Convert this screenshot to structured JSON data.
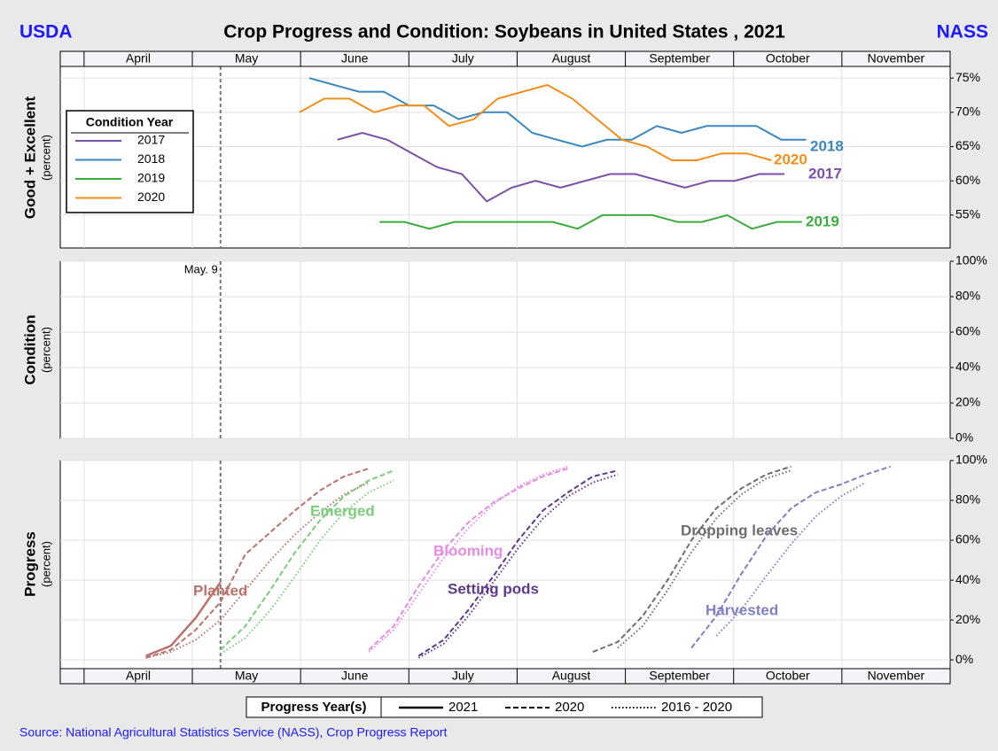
{
  "header": {
    "left": "USDA",
    "title": "Crop Progress and Condition: Soybeans in United States , 2021",
    "right": "NASS"
  },
  "source": "Source: National Agricultural Statistics Service (NASS), Crop Progress Report",
  "chart_data": [
    {
      "type": "line",
      "ylabel": "Good + Excellent",
      "ylabel_sub": "(percent)",
      "xaxis": "top",
      "grid": true,
      "legend": "left",
      "legend_title": "Condition Year",
      "xlim": [
        3.78,
        12.0
      ],
      "xticks": [
        {
          "value": 4,
          "label": "April"
        },
        {
          "value": 5,
          "label": "May"
        },
        {
          "value": 6,
          "label": "June"
        },
        {
          "value": 7,
          "label": "July"
        },
        {
          "value": 8,
          "label": "August"
        },
        {
          "value": 9,
          "label": "September"
        },
        {
          "value": 10,
          "label": "October"
        },
        {
          "value": 11,
          "label": "November"
        }
      ],
      "ylim": [
        50.2,
        76.7
      ],
      "yticks": [
        {
          "value": 55,
          "label": "55%"
        },
        {
          "value": 60,
          "label": "60%"
        },
        {
          "value": 65,
          "label": "65%"
        },
        {
          "value": 70,
          "label": "70%"
        },
        {
          "value": 75,
          "label": "75%"
        }
      ],
      "series": [
        {
          "name": "2017",
          "color": "#7b4fa6",
          "x": [
            6.34,
            6.57,
            6.8,
            7.03,
            7.26,
            7.49,
            7.72,
            7.95,
            8.17,
            8.4,
            8.63,
            8.86,
            9.09,
            9.32,
            9.55,
            9.78,
            10.01,
            10.24,
            10.47
          ],
          "values": [
            66,
            67,
            66,
            64,
            62,
            61,
            57,
            59,
            60,
            59,
            60,
            61,
            61,
            60,
            59,
            60,
            60,
            61,
            61
          ]
        },
        {
          "name": "2018",
          "color": "#3a87bd",
          "x": [
            6.08,
            6.31,
            6.54,
            6.77,
            7.0,
            7.23,
            7.46,
            7.69,
            7.91,
            8.14,
            8.37,
            8.6,
            8.83,
            9.06,
            9.29,
            9.52,
            9.75,
            9.98,
            10.21,
            10.44,
            10.67
          ],
          "values": [
            75,
            74,
            73,
            73,
            71,
            71,
            69,
            70,
            70,
            67,
            66,
            65,
            66,
            66,
            68,
            67,
            68,
            68,
            68,
            66,
            66
          ]
        },
        {
          "name": "2019",
          "color": "#3dab3d",
          "x": [
            6.73,
            6.96,
            7.19,
            7.42,
            7.65,
            7.88,
            8.11,
            8.33,
            8.56,
            8.79,
            9.02,
            9.25,
            9.48,
            9.71,
            9.94,
            10.17,
            10.4,
            10.63
          ],
          "values": [
            54,
            54,
            53,
            54,
            54,
            54,
            54,
            54,
            53,
            55,
            55,
            55,
            54,
            54,
            55,
            53,
            54,
            54
          ]
        },
        {
          "name": "2020",
          "color": "#f28e1c",
          "x": [
            5.99,
            6.22,
            6.45,
            6.68,
            6.91,
            7.14,
            7.37,
            7.6,
            7.82,
            8.05,
            8.28,
            8.51,
            8.74,
            8.97,
            9.2,
            9.43,
            9.66,
            9.89,
            10.12,
            10.35
          ],
          "values": [
            70,
            72,
            72,
            70,
            71,
            71,
            68,
            69,
            72,
            73,
            74,
            72,
            69,
            66,
            65,
            63,
            63,
            64,
            64,
            63
          ]
        }
      ]
    },
    {
      "type": "line",
      "ylabel": "Condition",
      "ylabel_sub": "(percent)",
      "grid": true,
      "xlim": [
        3.78,
        12.0
      ],
      "ylim": [
        0,
        100
      ],
      "yticks": [
        {
          "value": 0,
          "label": "0%"
        },
        {
          "value": 20,
          "label": "20%"
        },
        {
          "value": 40,
          "label": "40%"
        },
        {
          "value": 60,
          "label": "60%"
        },
        {
          "value": 80,
          "label": "80%"
        },
        {
          "value": 100,
          "label": "100%"
        }
      ],
      "marker": {
        "value": 5.26,
        "label": "May. 9"
      }
    },
    {
      "type": "line",
      "ylabel": "Progress",
      "ylabel_sub": "(percent)",
      "xaxis": "bottom",
      "grid": true,
      "legend_title": "Progress Year(s)",
      "line_styles": [
        {
          "name": "2021",
          "dash": "solid"
        },
        {
          "name": "2020",
          "dash": "dashed"
        },
        {
          "name": "2016 - 2020",
          "dash": "dotted"
        }
      ],
      "xlim": [
        3.78,
        12.0
      ],
      "xticks": [
        {
          "value": 4,
          "label": "April"
        },
        {
          "value": 5,
          "label": "May"
        },
        {
          "value": 6,
          "label": "June"
        },
        {
          "value": 7,
          "label": "July"
        },
        {
          "value": 8,
          "label": "August"
        },
        {
          "value": 9,
          "label": "September"
        },
        {
          "value": 10,
          "label": "October"
        },
        {
          "value": 11,
          "label": "November"
        }
      ],
      "ylim": [
        -4.4,
        100
      ],
      "yticks": [
        {
          "value": 0,
          "label": "0%"
        },
        {
          "value": 20,
          "label": "20%"
        },
        {
          "value": 40,
          "label": "40%"
        },
        {
          "value": 60,
          "label": "60%"
        },
        {
          "value": 80,
          "label": "80%"
        },
        {
          "value": 100,
          "label": "100%"
        }
      ],
      "x": [
        4.57,
        4.8,
        5.03,
        5.26,
        5.49,
        5.72,
        5.95,
        6.18,
        6.4,
        6.63,
        6.86,
        7.09,
        7.32,
        7.55,
        7.78,
        8.01,
        8.24,
        8.47,
        8.7,
        8.93,
        9.16,
        9.39,
        9.61,
        9.84,
        10.07,
        10.3,
        10.53,
        10.76,
        10.99,
        11.22,
        11.45
      ],
      "stages": [
        {
          "name": "Planted",
          "color": "#b8736c",
          "series": [
            {
              "name": "2021",
              "values": [
                2,
                7,
                21,
                39,
                null,
                null,
                null,
                null,
                null,
                null,
                null,
                null,
                null,
                null,
                null,
                null,
                null,
                null,
                null,
                null,
                null,
                null,
                null,
                null,
                null,
                null,
                null,
                null,
                null,
                null,
                null
              ]
            },
            {
              "name": "2020",
              "values": [
                1,
                5,
                15,
                29,
                53,
                64,
                75,
                85,
                92,
                96,
                null,
                null,
                null,
                null,
                null,
                null,
                null,
                null,
                null,
                null,
                null,
                null,
                null,
                null,
                null,
                null,
                null,
                null,
                null,
                null,
                null
              ]
            },
            {
              "name": "2016 - 2020",
              "values": [
                1,
                4,
                10,
                20,
                35,
                50,
                63,
                74,
                83,
                89,
                null,
                null,
                null,
                null,
                null,
                null,
                null,
                null,
                null,
                null,
                null,
                null,
                null,
                null,
                null,
                null,
                null,
                null,
                null,
                null,
                null
              ]
            }
          ]
        },
        {
          "name": "Emerged",
          "color": "#7ccc7c",
          "series": [
            {
              "name": "2020",
              "values": [
                null,
                null,
                null,
                5,
                17,
                35,
                54,
                70,
                82,
                90,
                95,
                null,
                null,
                null,
                null,
                null,
                null,
                null,
                null,
                null,
                null,
                null,
                null,
                null,
                null,
                null,
                null,
                null,
                null,
                null,
                null
              ]
            },
            {
              "name": "2016 - 2020",
              "values": [
                null,
                null,
                null,
                3,
                11,
                25,
                42,
                60,
                74,
                84,
                90,
                null,
                null,
                null,
                null,
                null,
                null,
                null,
                null,
                null,
                null,
                null,
                null,
                null,
                null,
                null,
                null,
                null,
                null,
                null,
                null
              ]
            }
          ]
        },
        {
          "name": "Blooming",
          "color": "#e68ce6",
          "series": [
            {
              "name": "2020",
              "values": [
                null,
                null,
                null,
                null,
                null,
                null,
                null,
                null,
                null,
                5,
                17,
                37,
                55,
                69,
                79,
                86,
                92,
                96,
                null,
                null,
                null,
                null,
                null,
                null,
                null,
                null,
                null,
                null,
                null,
                null,
                null
              ]
            },
            {
              "name": "2016 - 2020",
              "values": [
                null,
                null,
                null,
                null,
                null,
                null,
                null,
                null,
                null,
                4,
                15,
                33,
                51,
                66,
                78,
                87,
                93,
                97,
                null,
                null,
                null,
                null,
                null,
                null,
                null,
                null,
                null,
                null,
                null,
                null,
                null
              ]
            }
          ]
        },
        {
          "name": "Setting pods",
          "color": "#5d3a8e",
          "series": [
            {
              "name": "2020",
              "values": [
                null,
                null,
                null,
                null,
                null,
                null,
                null,
                null,
                null,
                null,
                null,
                2,
                10,
                25,
                42,
                60,
                75,
                84,
                92,
                95,
                null,
                null,
                null,
                null,
                null,
                null,
                null,
                null,
                null,
                null,
                null
              ]
            },
            {
              "name": "2016 - 2020",
              "values": [
                null,
                null,
                null,
                null,
                null,
                null,
                null,
                null,
                null,
                null,
                null,
                1,
                8,
                22,
                39,
                56,
                71,
                82,
                89,
                93,
                null,
                null,
                null,
                null,
                null,
                null,
                null,
                null,
                null,
                null,
                null
              ]
            }
          ]
        },
        {
          "name": "Dropping leaves",
          "color": "#6e6e6e",
          "series": [
            {
              "name": "2020",
              "values": [
                null,
                null,
                null,
                null,
                null,
                null,
                null,
                null,
                null,
                null,
                null,
                null,
                null,
                null,
                null,
                null,
                null,
                null,
                4,
                9,
                22,
                40,
                60,
                76,
                86,
                93,
                97,
                null,
                null,
                null,
                null
              ]
            },
            {
              "name": "2016 - 2020",
              "values": [
                null,
                null,
                null,
                null,
                null,
                null,
                null,
                null,
                null,
                null,
                null,
                null,
                null,
                null,
                null,
                null,
                null,
                null,
                null,
                6,
                17,
                35,
                54,
                71,
                83,
                91,
                95,
                null,
                null,
                null,
                null
              ]
            }
          ]
        },
        {
          "name": "Harvested",
          "color": "#7f7fc4",
          "series": [
            {
              "name": "2020",
              "values": [
                null,
                null,
                null,
                null,
                null,
                null,
                null,
                null,
                null,
                null,
                null,
                null,
                null,
                null,
                null,
                null,
                null,
                null,
                null,
                null,
                null,
                null,
                6,
                22,
                43,
                62,
                76,
                84,
                88,
                93,
                97
              ]
            },
            {
              "name": "2016 - 2020",
              "values": [
                null,
                null,
                null,
                null,
                null,
                null,
                null,
                null,
                null,
                null,
                null,
                null,
                null,
                null,
                null,
                null,
                null,
                null,
                null,
                null,
                null,
                null,
                null,
                12,
                25,
                42,
                58,
                72,
                82,
                89,
                null
              ]
            }
          ]
        }
      ]
    }
  ]
}
